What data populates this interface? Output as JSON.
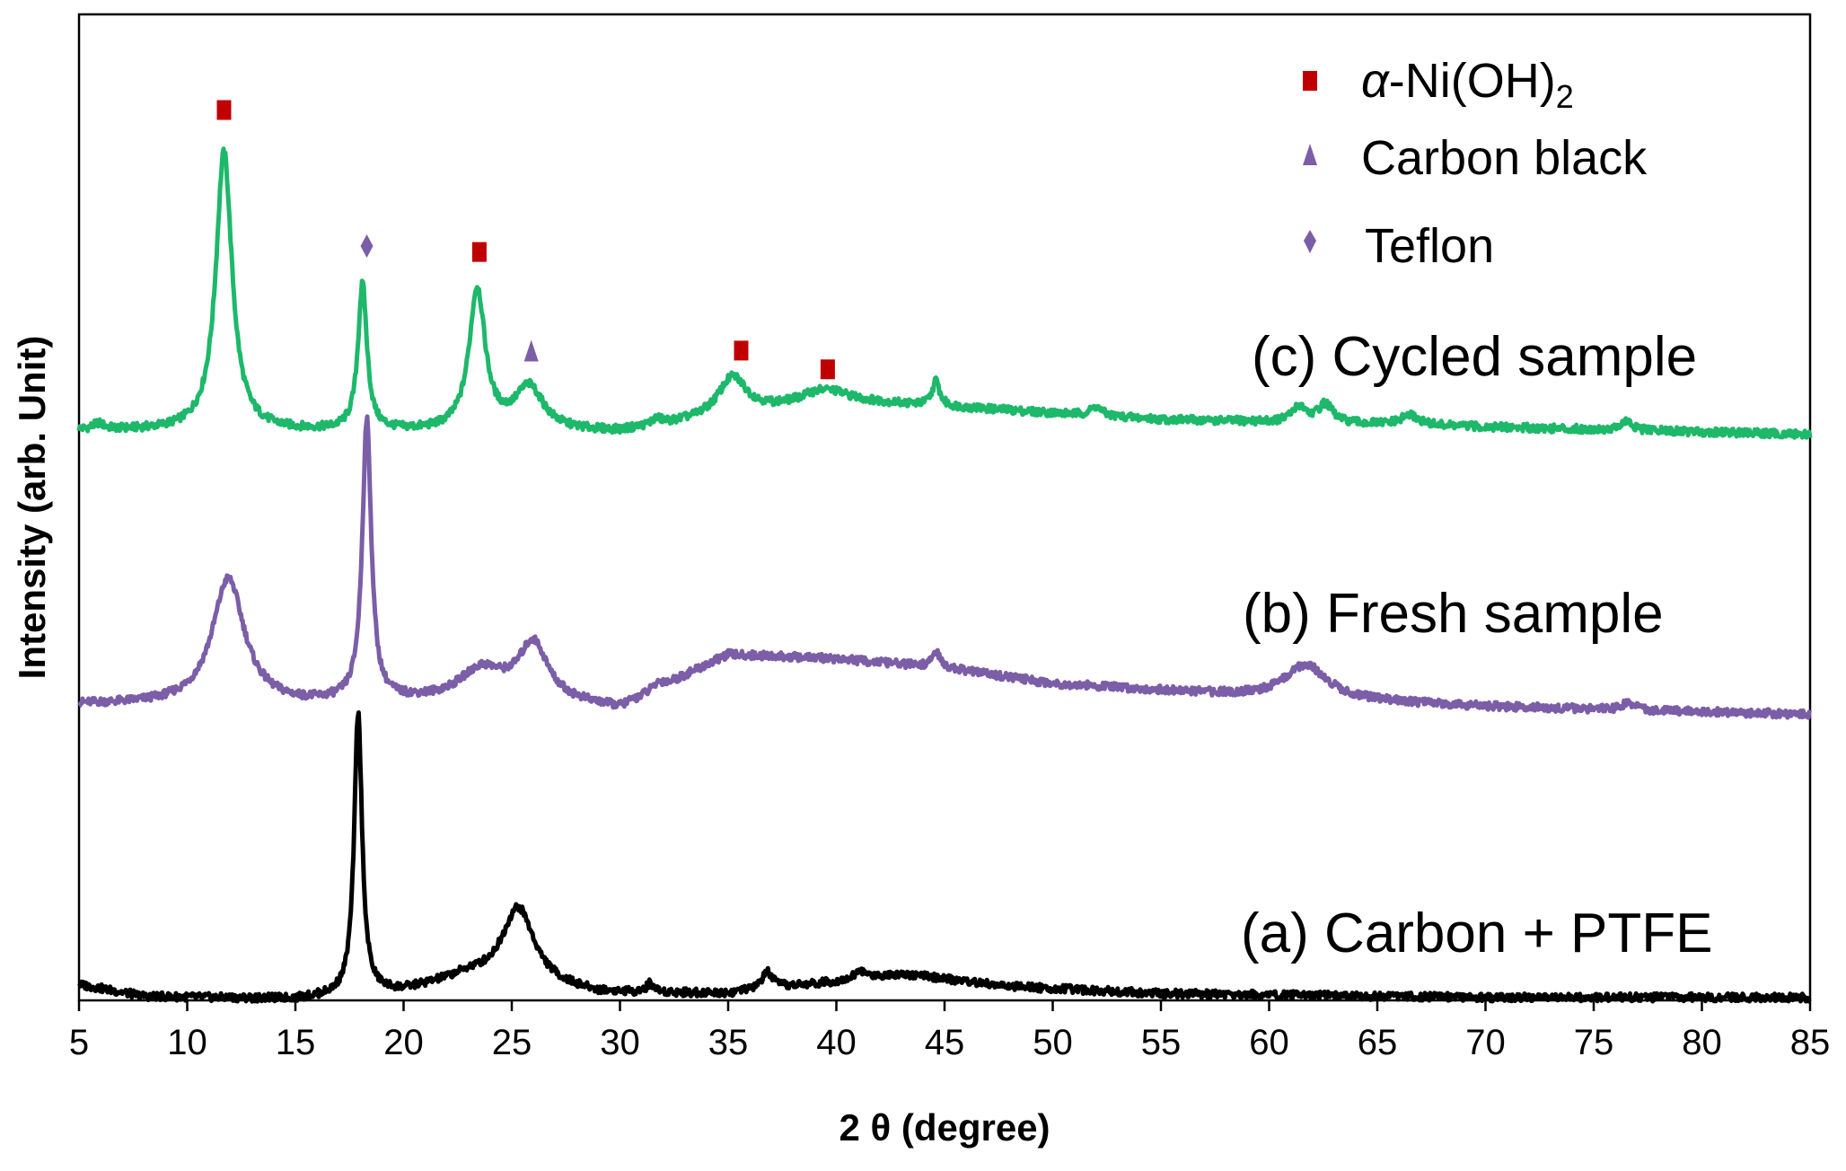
{
  "chart_data": {
    "type": "line",
    "title": "",
    "xlabel": "2 θ (degree)",
    "ylabel": "Intensity (arb. Unit)",
    "xlim": [
      5,
      85
    ],
    "ylim": [
      0,
      100
    ],
    "x_ticks": [
      5,
      10,
      15,
      20,
      25,
      30,
      35,
      40,
      45,
      50,
      55,
      60,
      65,
      70,
      75,
      80,
      85
    ],
    "grid": false,
    "y_ticks_visible": false,
    "colors": {
      "alpha_marker": "#c00000",
      "carbon_marker": "#7b5ea7",
      "teflon_marker": "#7b5ea7",
      "cycled": "#1db86a",
      "fresh": "#7b5ea7",
      "carbon_ptfe": "#000000"
    },
    "series": [
      {
        "key": "cycled",
        "name": "(c) Cycled sample",
        "baseline": [
          [
            5,
            57.8
          ],
          [
            20,
            57.6
          ],
          [
            30,
            57.6
          ],
          [
            40,
            60.8
          ],
          [
            45,
            60.2
          ],
          [
            55,
            58.9
          ],
          [
            85,
            57.4
          ]
        ],
        "peaks": [
          [
            5.9,
            0.6,
            0.3
          ],
          [
            11.7,
            28.3,
            0.45
          ],
          [
            18.1,
            14.8,
            0.25
          ],
          [
            23.4,
            14.3,
            0.45
          ],
          [
            25.8,
            4.4,
            0.8
          ],
          [
            31.7,
            0.6,
            0.3
          ],
          [
            35.2,
            3.9,
            0.8
          ],
          [
            39.3,
            1.2,
            1.2
          ],
          [
            44.6,
            2.5,
            0.2
          ],
          [
            52.0,
            0.9,
            0.3
          ],
          [
            61.4,
            1.6,
            0.4
          ],
          [
            62.6,
            1.9,
            0.4
          ],
          [
            66.5,
            1.0,
            0.5
          ],
          [
            76.5,
            0.9,
            0.3
          ]
        ]
      },
      {
        "key": "fresh",
        "name": "(b) Fresh sample",
        "baseline": [
          [
            5,
            30.0
          ],
          [
            15,
            29.9
          ],
          [
            25,
            30.6
          ],
          [
            30,
            29.6
          ],
          [
            35,
            35.0
          ],
          [
            40,
            34.6
          ],
          [
            45,
            33.7
          ],
          [
            50,
            32.1
          ],
          [
            60,
            30.7
          ],
          [
            70,
            29.8
          ],
          [
            85,
            29.0
          ]
        ],
        "peaks": [
          [
            11.9,
            12.8,
            0.9
          ],
          [
            18.3,
            28.4,
            0.25
          ],
          [
            23.6,
            2.9,
            1.2
          ],
          [
            26.0,
            5.6,
            0.8
          ],
          [
            31.8,
            0.6,
            0.3
          ],
          [
            44.6,
            1.6,
            0.2
          ],
          [
            61.7,
            3.5,
            1.2
          ],
          [
            76.6,
            0.8,
            0.3
          ]
        ]
      },
      {
        "key": "carbon_ptfe",
        "name": "(a) Carbon + PTFE",
        "baseline": [
          [
            5,
            1.6
          ],
          [
            8,
            0.4
          ],
          [
            15,
            0.1
          ],
          [
            20,
            0.9
          ],
          [
            23,
            2.4
          ],
          [
            29,
            0.7
          ],
          [
            35,
            0.7
          ],
          [
            40,
            1.9
          ],
          [
            43,
            2.7
          ],
          [
            48,
            1.4
          ],
          [
            55,
            0.7
          ],
          [
            70,
            0.3
          ],
          [
            85,
            0.3
          ]
        ],
        "peaks": [
          [
            17.9,
            28.5,
            0.22
          ],
          [
            25.3,
            7.7,
            0.9
          ],
          [
            31.4,
            0.9,
            0.2
          ],
          [
            36.8,
            1.7,
            0.3
          ],
          [
            41.1,
            0.8,
            0.3
          ]
        ]
      }
    ],
    "markers": [
      {
        "type": "alpha",
        "x": 11.7,
        "y": 90.3
      },
      {
        "type": "teflon",
        "x": 18.3,
        "y": 76.5
      },
      {
        "type": "alpha",
        "x": 23.5,
        "y": 75.9
      },
      {
        "type": "carbon",
        "x": 25.9,
        "y": 65.8
      },
      {
        "type": "alpha",
        "x": 35.6,
        "y": 65.9
      },
      {
        "type": "alpha",
        "x": 39.6,
        "y": 64.0
      }
    ],
    "legend": [
      {
        "type": "alpha",
        "label": "α-Ni(OH)",
        "subscript": "2"
      },
      {
        "type": "carbon",
        "label": "Carbon black"
      },
      {
        "type": "teflon",
        "label": "Teflon"
      }
    ],
    "legend_position": "top-right"
  }
}
